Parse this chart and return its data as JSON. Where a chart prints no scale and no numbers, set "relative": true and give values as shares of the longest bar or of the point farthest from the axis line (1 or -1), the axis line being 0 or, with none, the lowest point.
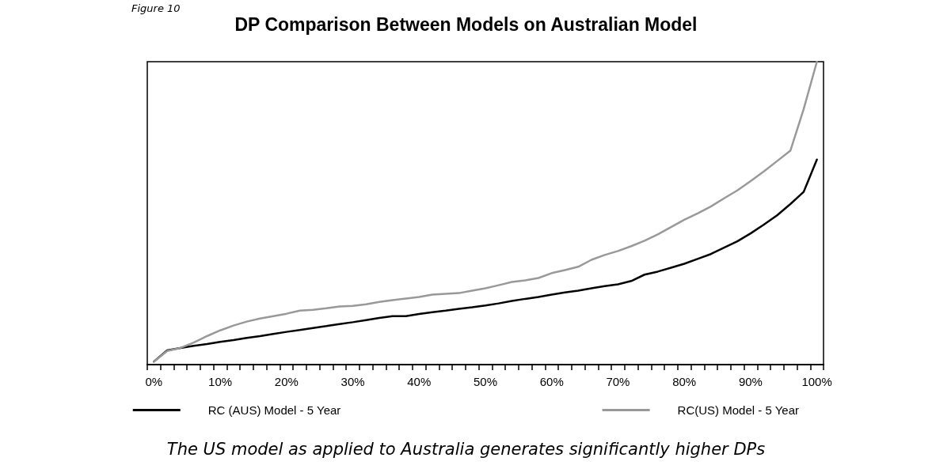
{
  "chart_data": {
    "type": "line",
    "title": "DP Comparison Between Models on Australian Model",
    "annotations": [
      "Figure 10",
      "The US model as applied to Australia generates significantly higher DPs"
    ],
    "relative": true,
    "grid": false,
    "legend": "bottom",
    "marker": "none",
    "line_style": "solid",
    "categories": [
      "0%",
      null,
      null,
      null,
      null,
      "10%",
      null,
      null,
      null,
      null,
      "20%",
      null,
      null,
      null,
      null,
      "30%",
      null,
      null,
      null,
      null,
      "40%",
      null,
      null,
      null,
      null,
      "50%",
      null,
      null,
      null,
      null,
      "60%",
      null,
      null,
      null,
      null,
      "70%",
      null,
      null,
      null,
      null,
      "80%",
      null,
      null,
      null,
      null,
      "90%",
      null,
      null,
      null,
      null,
      "100%"
    ],
    "series": [
      {
        "name": "RC (AUS) Model - 5 Year",
        "color": "#000000",
        "values": [
          0.01,
          0.047,
          0.055,
          0.062,
          0.068,
          0.075,
          0.081,
          0.088,
          0.094,
          0.101,
          0.108,
          0.114,
          0.121,
          0.127,
          0.134,
          0.14,
          0.147,
          0.154,
          0.16,
          0.16,
          0.167,
          0.173,
          0.178,
          0.184,
          0.189,
          0.195,
          0.202,
          0.21,
          0.217,
          0.223,
          0.231,
          0.238,
          0.244,
          0.252,
          0.259,
          0.265,
          0.276,
          0.297,
          0.307,
          0.32,
          0.333,
          0.349,
          0.365,
          0.386,
          0.407,
          0.433,
          0.462,
          0.493,
          0.53,
          0.57,
          0.677
        ]
      },
      {
        "name": "RC(US) Model - 5 Year",
        "color": "#999999",
        "values": [
          0.01,
          0.045,
          0.055,
          0.073,
          0.094,
          0.113,
          0.129,
          0.142,
          0.152,
          0.16,
          0.168,
          0.178,
          0.181,
          0.186,
          0.192,
          0.194,
          0.199,
          0.207,
          0.213,
          0.218,
          0.223,
          0.231,
          0.234,
          0.236,
          0.244,
          0.252,
          0.262,
          0.273,
          0.278,
          0.286,
          0.302,
          0.312,
          0.323,
          0.346,
          0.362,
          0.375,
          0.391,
          0.409,
          0.43,
          0.454,
          0.478,
          0.499,
          0.522,
          0.549,
          0.575,
          0.606,
          0.638,
          0.672,
          0.706,
          0.843,
          1
        ]
      }
    ]
  }
}
